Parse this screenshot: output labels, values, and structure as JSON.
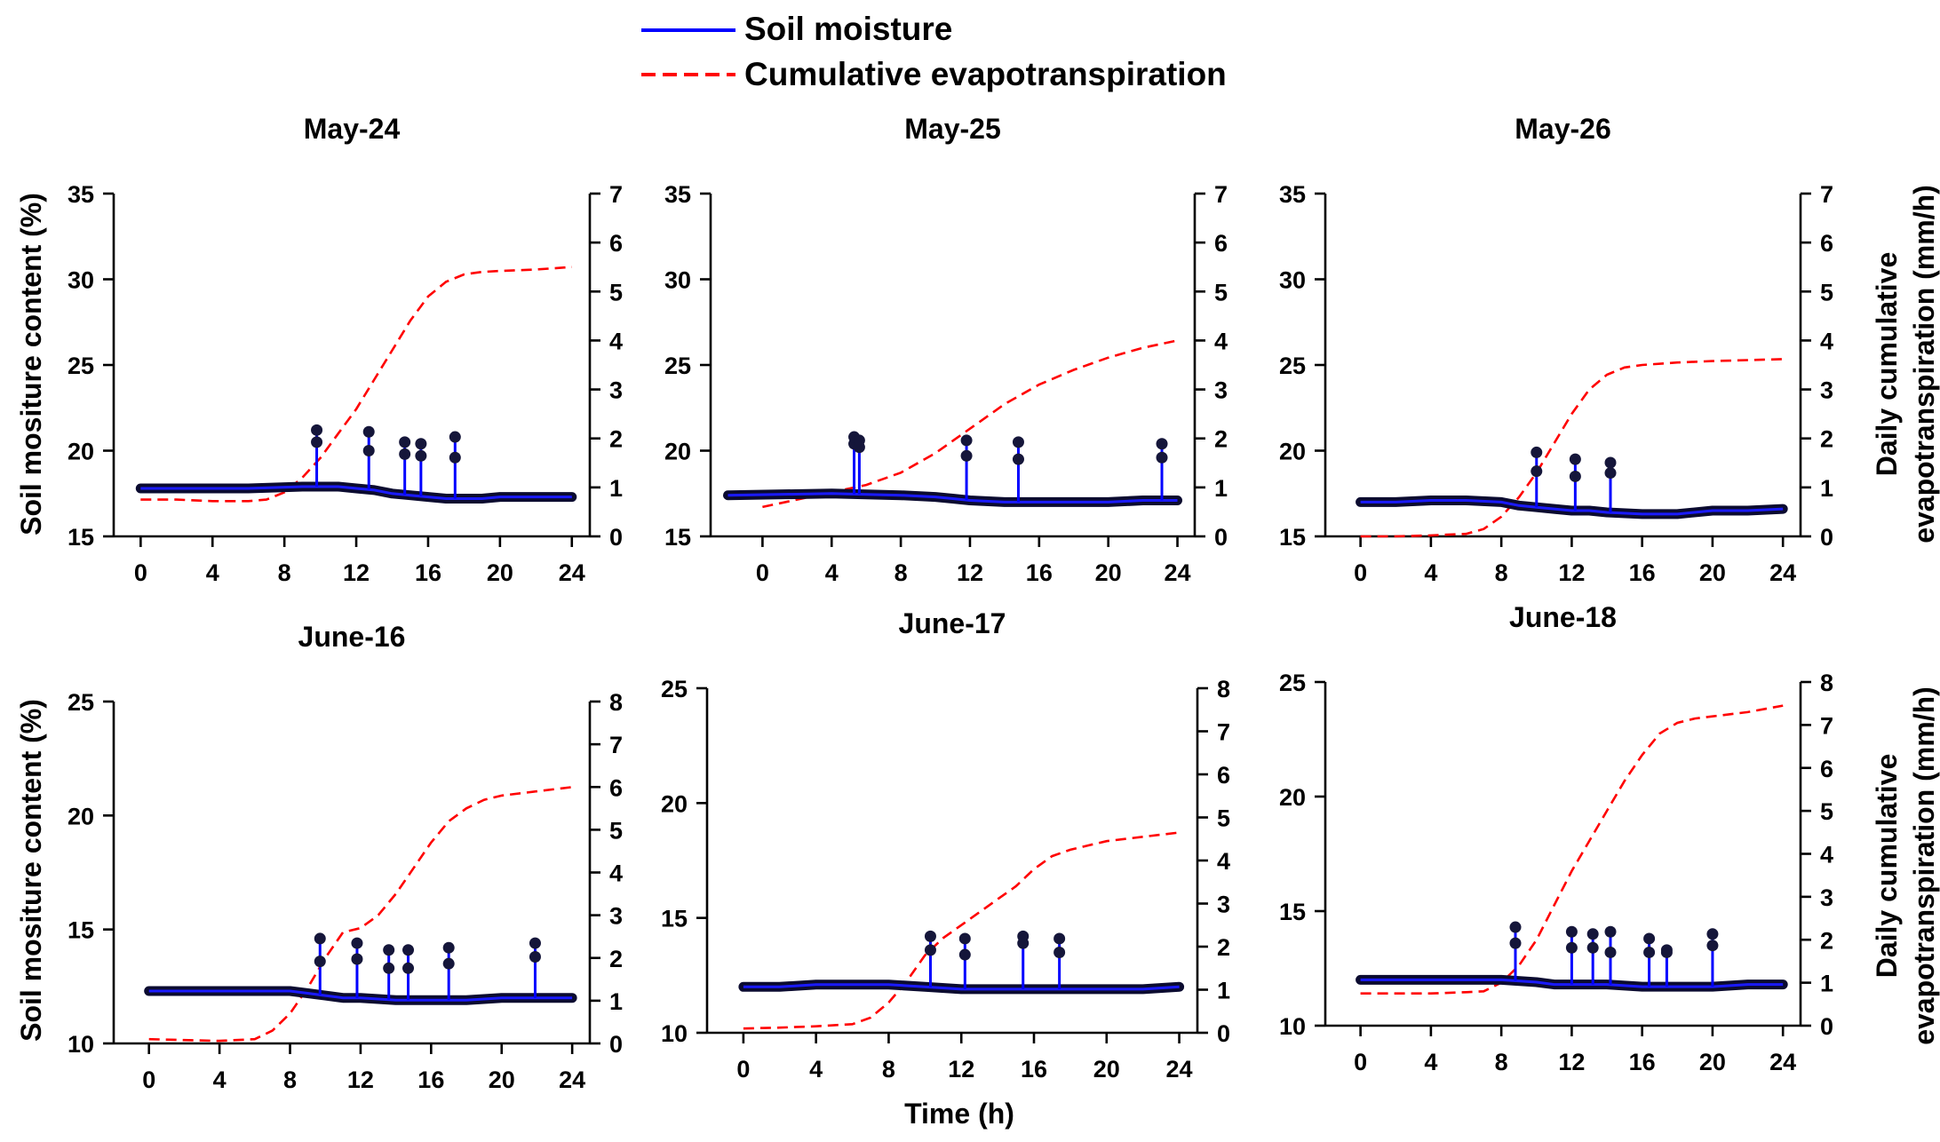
{
  "legend": {
    "entries": [
      {
        "label": "Soil moisture",
        "color": "#0000ff",
        "style": "solid"
      },
      {
        "label": "Cumulative evapotranspiration",
        "color": "#ff0000",
        "style": "dashed"
      }
    ]
  },
  "shared_labels": {
    "xlabel": "Time (h)",
    "ylabel_left": "Soil mositure content (%)",
    "ylabel_right_line1": "Daily cumulative",
    "ylabel_right_line2": "evapotranspiration (mm/h)"
  },
  "chart_data": [
    {
      "type": "line",
      "title": "May-24",
      "xlim": [
        -1.5,
        25
      ],
      "xticks": [
        0,
        4,
        8,
        12,
        16,
        20,
        24
      ],
      "ylim": [
        15,
        35
      ],
      "yticks": [
        15,
        20,
        25,
        30,
        35
      ],
      "y2lim": [
        0,
        7
      ],
      "y2ticks": [
        0,
        1,
        2,
        3,
        4,
        5,
        6,
        7
      ],
      "soil_moisture": {
        "x": [
          0,
          6,
          9,
          10,
          11,
          12,
          13,
          14,
          15,
          16,
          17,
          18,
          19,
          20,
          22,
          24
        ],
        "y": [
          17.8,
          17.8,
          17.9,
          17.9,
          17.9,
          17.8,
          17.7,
          17.5,
          17.4,
          17.3,
          17.2,
          17.2,
          17.2,
          17.3,
          17.3,
          17.3
        ]
      },
      "irrigation_spikes": [
        {
          "x": 9.8,
          "y": [
            20.5,
            21.2
          ]
        },
        {
          "x": 12.7,
          "y": [
            20.0,
            21.1
          ]
        },
        {
          "x": 14.7,
          "y": [
            19.8,
            20.5
          ]
        },
        {
          "x": 15.6,
          "y": [
            19.7,
            20.4
          ]
        },
        {
          "x": 17.5,
          "y": [
            19.6,
            20.8
          ]
        }
      ],
      "cumulative_et": {
        "x": [
          0,
          2,
          4,
          6,
          7,
          8,
          9,
          10,
          11,
          12,
          13,
          14,
          15,
          16,
          17,
          18,
          19,
          20,
          22,
          24
        ],
        "y": [
          0.75,
          0.75,
          0.72,
          0.72,
          0.75,
          0.9,
          1.2,
          1.6,
          2.1,
          2.6,
          3.2,
          3.8,
          4.4,
          4.9,
          5.2,
          5.35,
          5.4,
          5.42,
          5.45,
          5.5
        ]
      }
    },
    {
      "type": "line",
      "title": "May-25",
      "xlim": [
        -3,
        25
      ],
      "xticks": [
        0,
        4,
        8,
        12,
        16,
        20,
        24
      ],
      "ylim": [
        15,
        35
      ],
      "yticks": [
        15,
        20,
        25,
        30,
        35
      ],
      "y2lim": [
        0,
        7
      ],
      "y2ticks": [
        0,
        1,
        2,
        3,
        4,
        5,
        6,
        7
      ],
      "soil_moisture": {
        "x": [
          -2,
          4,
          8,
          10,
          11,
          12,
          14,
          16,
          18,
          20,
          22,
          24
        ],
        "y": [
          17.4,
          17.5,
          17.4,
          17.3,
          17.2,
          17.1,
          17.0,
          17.0,
          17.0,
          17.0,
          17.1,
          17.1
        ]
      },
      "irrigation_spikes": [
        {
          "x": 5.3,
          "y": [
            20.4,
            20.8
          ]
        },
        {
          "x": 5.6,
          "y": [
            20.2,
            20.6
          ]
        },
        {
          "x": 11.8,
          "y": [
            19.7,
            20.6
          ]
        },
        {
          "x": 14.8,
          "y": [
            19.5,
            20.5
          ]
        },
        {
          "x": 23.1,
          "y": [
            19.6,
            20.4
          ]
        }
      ],
      "cumulative_et": {
        "x": [
          0,
          2,
          4,
          6,
          8,
          10,
          12,
          14,
          16,
          18,
          20,
          22,
          24
        ],
        "y": [
          0.6,
          0.75,
          0.9,
          1.05,
          1.3,
          1.7,
          2.2,
          2.7,
          3.1,
          3.4,
          3.65,
          3.85,
          4.0
        ]
      }
    },
    {
      "type": "line",
      "title": "May-26",
      "xlim": [
        -2,
        25
      ],
      "xticks": [
        0,
        4,
        8,
        12,
        16,
        20,
        24
      ],
      "ylim": [
        15,
        35
      ],
      "yticks": [
        15,
        20,
        25,
        30,
        35
      ],
      "y2lim": [
        0,
        7
      ],
      "y2ticks": [
        0,
        1,
        2,
        3,
        4,
        5,
        6,
        7
      ],
      "soil_moisture": {
        "x": [
          0,
          2,
          4,
          6,
          8,
          9,
          10,
          11,
          12,
          13,
          14,
          16,
          18,
          20,
          22,
          24
        ],
        "y": [
          17.0,
          17.0,
          17.1,
          17.1,
          17.0,
          16.8,
          16.7,
          16.6,
          16.5,
          16.5,
          16.4,
          16.3,
          16.3,
          16.5,
          16.5,
          16.6
        ]
      },
      "irrigation_spikes": [
        {
          "x": 10.0,
          "y": [
            18.8,
            19.9
          ]
        },
        {
          "x": 12.2,
          "y": [
            18.5,
            19.5
          ]
        },
        {
          "x": 14.2,
          "y": [
            18.7,
            19.3
          ]
        }
      ],
      "cumulative_et": {
        "x": [
          0,
          2,
          4,
          6,
          7,
          8,
          9,
          10,
          11,
          12,
          13,
          14,
          15,
          16,
          18,
          20,
          22,
          24
        ],
        "y": [
          0.0,
          0.0,
          0.02,
          0.05,
          0.15,
          0.4,
          0.8,
          1.3,
          1.9,
          2.5,
          3.0,
          3.3,
          3.45,
          3.5,
          3.55,
          3.58,
          3.6,
          3.62
        ]
      }
    },
    {
      "type": "line",
      "title": "June-16",
      "xlim": [
        -2,
        25
      ],
      "xticks": [
        0,
        4,
        8,
        12,
        16,
        20,
        24
      ],
      "ylim": [
        10,
        25
      ],
      "yticks": [
        10,
        15,
        20,
        25
      ],
      "y2lim": [
        0,
        8
      ],
      "y2ticks": [
        0,
        1,
        2,
        3,
        4,
        5,
        6,
        7,
        8
      ],
      "soil_moisture": {
        "x": [
          0,
          4,
          8,
          9,
          10,
          11,
          12,
          14,
          16,
          18,
          20,
          22,
          24
        ],
        "y": [
          12.3,
          12.3,
          12.3,
          12.2,
          12.1,
          12.0,
          12.0,
          11.9,
          11.9,
          11.9,
          12.0,
          12.0,
          12.0
        ]
      },
      "irrigation_spikes": [
        {
          "x": 9.7,
          "y": [
            13.6,
            14.6
          ]
        },
        {
          "x": 11.8,
          "y": [
            13.7,
            14.4
          ]
        },
        {
          "x": 13.6,
          "y": [
            13.3,
            14.1
          ]
        },
        {
          "x": 14.7,
          "y": [
            13.3,
            14.1
          ]
        },
        {
          "x": 17.0,
          "y": [
            13.5,
            14.2
          ]
        },
        {
          "x": 21.9,
          "y": [
            13.8,
            14.4
          ]
        }
      ],
      "cumulative_et": {
        "x": [
          0,
          2,
          4,
          6,
          7,
          8,
          9,
          10,
          11,
          12,
          13,
          14,
          15,
          16,
          17,
          18,
          19,
          20,
          22,
          24
        ],
        "y": [
          0.1,
          0.08,
          0.06,
          0.1,
          0.3,
          0.7,
          1.3,
          2.0,
          2.6,
          2.7,
          3.0,
          3.5,
          4.1,
          4.7,
          5.2,
          5.5,
          5.7,
          5.8,
          5.9,
          6.0
        ]
      }
    },
    {
      "type": "line",
      "title": "June-17",
      "xlim": [
        -2,
        25
      ],
      "xticks": [
        0,
        4,
        8,
        12,
        16,
        20,
        24
      ],
      "ylim": [
        10,
        25
      ],
      "yticks": [
        10,
        15,
        20,
        25
      ],
      "y2lim": [
        0,
        8
      ],
      "y2ticks": [
        0,
        1,
        2,
        3,
        4,
        5,
        6,
        7,
        8
      ],
      "soil_moisture": {
        "x": [
          0,
          2,
          4,
          8,
          10,
          12,
          14,
          16,
          18,
          20,
          22,
          24
        ],
        "y": [
          12.0,
          12.0,
          12.1,
          12.1,
          12.0,
          11.9,
          11.9,
          11.9,
          11.9,
          11.9,
          11.9,
          12.0
        ]
      },
      "irrigation_spikes": [
        {
          "x": 10.3,
          "y": [
            13.6,
            14.2
          ]
        },
        {
          "x": 12.2,
          "y": [
            13.4,
            14.1
          ]
        },
        {
          "x": 15.4,
          "y": [
            13.9,
            14.2
          ]
        },
        {
          "x": 17.4,
          "y": [
            13.5,
            14.1
          ]
        }
      ],
      "cumulative_et": {
        "x": [
          0,
          2,
          4,
          6,
          7,
          8,
          9,
          10,
          11,
          12,
          13,
          14,
          15,
          16,
          17,
          18,
          19,
          20,
          22,
          24
        ],
        "y": [
          0.1,
          0.12,
          0.15,
          0.2,
          0.35,
          0.7,
          1.2,
          1.8,
          2.2,
          2.5,
          2.8,
          3.1,
          3.4,
          3.8,
          4.1,
          4.25,
          4.35,
          4.45,
          4.55,
          4.65
        ]
      }
    },
    {
      "type": "line",
      "title": "June-18",
      "xlim": [
        -2,
        25
      ],
      "xticks": [
        0,
        4,
        8,
        12,
        16,
        20,
        24
      ],
      "ylim": [
        10,
        25
      ],
      "yticks": [
        10,
        15,
        20,
        25
      ],
      "y2lim": [
        0,
        8
      ],
      "y2ticks": [
        0,
        1,
        2,
        3,
        4,
        5,
        6,
        7,
        8
      ],
      "soil_moisture": {
        "x": [
          0,
          4,
          8,
          10,
          11,
          12,
          14,
          16,
          18,
          20,
          22,
          24
        ],
        "y": [
          12.0,
          12.0,
          12.0,
          11.9,
          11.8,
          11.8,
          11.8,
          11.7,
          11.7,
          11.7,
          11.8,
          11.8
        ]
      },
      "irrigation_spikes": [
        {
          "x": 8.8,
          "y": [
            13.6,
            14.3
          ]
        },
        {
          "x": 12.0,
          "y": [
            13.4,
            14.1
          ]
        },
        {
          "x": 13.2,
          "y": [
            13.4,
            14.0
          ]
        },
        {
          "x": 14.2,
          "y": [
            13.2,
            14.1
          ]
        },
        {
          "x": 16.4,
          "y": [
            13.2,
            13.8
          ]
        },
        {
          "x": 17.4,
          "y": [
            13.2,
            13.3
          ]
        },
        {
          "x": 20.0,
          "y": [
            13.5,
            14.0
          ]
        }
      ],
      "cumulative_et": {
        "x": [
          0,
          2,
          4,
          6,
          7,
          8,
          9,
          10,
          11,
          12,
          13,
          14,
          15,
          16,
          17,
          18,
          19,
          20,
          22,
          24
        ],
        "y": [
          0.75,
          0.75,
          0.75,
          0.78,
          0.8,
          1.0,
          1.4,
          2.0,
          2.8,
          3.6,
          4.3,
          5.0,
          5.7,
          6.3,
          6.8,
          7.05,
          7.15,
          7.2,
          7.3,
          7.45
        ]
      }
    }
  ]
}
